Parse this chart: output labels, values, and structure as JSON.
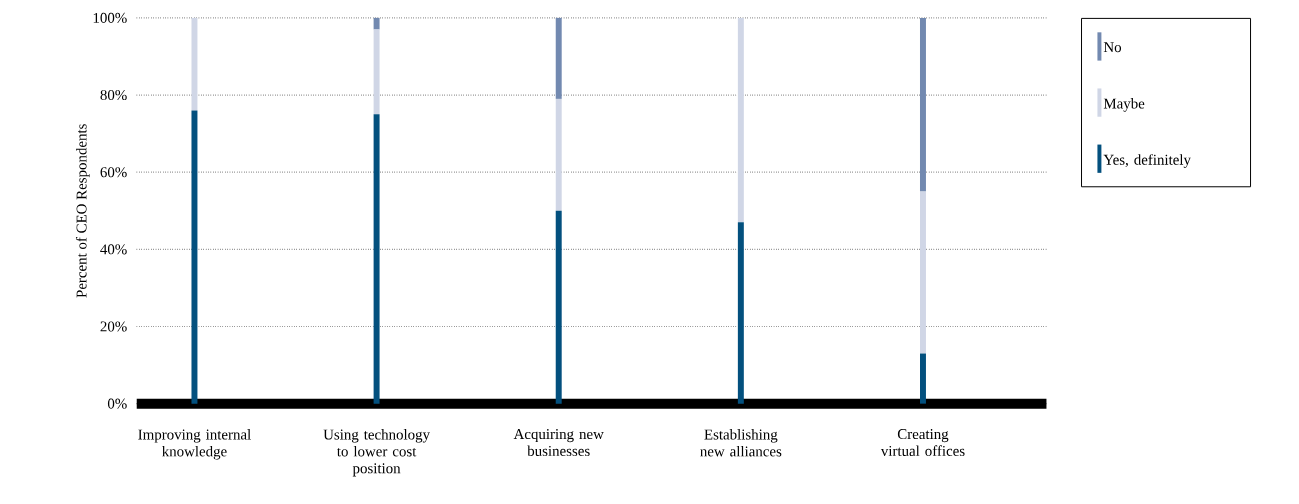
{
  "chart_data": {
    "type": "bar",
    "stacked": true,
    "ylabel": "Percent of CEO Respondents",
    "categories": [
      "Improving internal knowledge",
      "Using technology to lower cost position",
      "Acquiring new businesses",
      "Establishing new alliances",
      "Creating virtual offices"
    ],
    "series": [
      {
        "name": "Yes, definitely",
        "color": "#03507e",
        "values": [
          76,
          75,
          50,
          47,
          13
        ]
      },
      {
        "name": "Maybe",
        "color": "#d0d6e6",
        "values": [
          24,
          22,
          29,
          53,
          42
        ]
      },
      {
        "name": "No",
        "color": "#7289b0",
        "values": [
          0,
          3,
          21,
          0,
          45
        ]
      }
    ],
    "ylim": [
      0,
      100
    ],
    "yticks": [
      {
        "value": 0,
        "label": "0%"
      },
      {
        "value": 20,
        "label": "20%"
      },
      {
        "value": 40,
        "label": "40%"
      },
      {
        "value": 60,
        "label": "60%"
      },
      {
        "value": 80,
        "label": "80%"
      },
      {
        "value": 100,
        "label": "100%"
      }
    ],
    "grid": "y",
    "legend": "right"
  }
}
